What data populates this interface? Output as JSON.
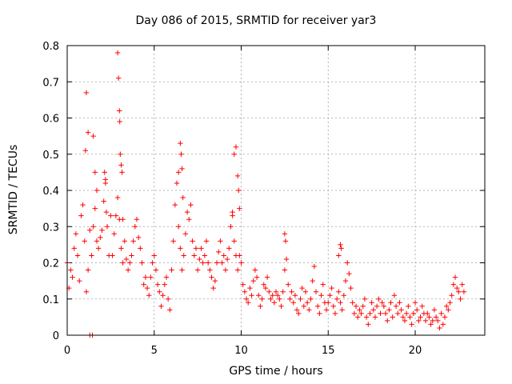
{
  "chart_data": {
    "type": "scatter",
    "title": "Day 086 of 2015, SRMTID for receiver yar3",
    "xlabel": "GPS time / hours",
    "ylabel": "SRMTID / TECUs",
    "xlim": [
      0,
      24
    ],
    "ylim": [
      0,
      0.8
    ],
    "xticks": [
      0,
      5,
      10,
      15,
      20
    ],
    "yticks": [
      0,
      0.1,
      0.2,
      0.3,
      0.4,
      0.5,
      0.6,
      0.7,
      0.8
    ],
    "xtick_labels": [
      "0",
      "5",
      "10",
      "15",
      "20"
    ],
    "ytick_labels": [
      "0",
      "0.1",
      "0.2",
      "0.3",
      "0.4",
      "0.5",
      "0.6",
      "0.7",
      "0.8"
    ],
    "grid": true,
    "marker": "+",
    "color": "#ff0000",
    "x": [
      0.0,
      0.1,
      0.2,
      0.3,
      0.4,
      0.5,
      0.6,
      0.7,
      0.8,
      0.9,
      1.0,
      1.1,
      1.2,
      1.3,
      1.4,
      1.5,
      1.6,
      1.7,
      1.8,
      1.9,
      2.0,
      2.1,
      2.2,
      2.3,
      2.4,
      2.5,
      2.6,
      2.7,
      2.8,
      2.9,
      3.0,
      3.1,
      3.2,
      3.3,
      3.4,
      3.5,
      3.6,
      3.7,
      3.8,
      3.9,
      4.0,
      4.1,
      4.2,
      4.3,
      4.4,
      4.5,
      4.6,
      4.7,
      4.8,
      4.9,
      5.0,
      5.1,
      5.2,
      5.3,
      5.4,
      5.5,
      5.6,
      5.7,
      5.8,
      5.9,
      6.0,
      6.1,
      6.2,
      6.3,
      6.4,
      6.5,
      6.6,
      6.7,
      6.8,
      6.9,
      7.0,
      7.1,
      7.2,
      7.3,
      7.4,
      7.5,
      7.6,
      7.7,
      7.8,
      7.9,
      8.0,
      8.1,
      8.2,
      8.3,
      8.4,
      8.5,
      8.6,
      8.7,
      8.8,
      8.9,
      9.0,
      9.1,
      9.2,
      9.3,
      9.4,
      9.5,
      9.6,
      9.7,
      9.8,
      9.9,
      10.0,
      10.1,
      10.2,
      10.3,
      10.4,
      10.5,
      10.6,
      10.7,
      10.8,
      10.9,
      11.0,
      11.1,
      11.2,
      11.3,
      11.4,
      11.5,
      11.6,
      11.7,
      11.8,
      11.9,
      12.0,
      12.1,
      12.2,
      12.3,
      12.4,
      12.5,
      12.6,
      12.7,
      12.8,
      12.9,
      13.0,
      13.1,
      13.2,
      13.3,
      13.4,
      13.5,
      13.6,
      13.7,
      13.8,
      13.9,
      14.0,
      14.1,
      14.2,
      14.3,
      14.4,
      14.5,
      14.6,
      14.7,
      14.8,
      14.9,
      15.0,
      15.1,
      15.2,
      15.3,
      15.4,
      15.5,
      15.6,
      15.7,
      15.8,
      15.9,
      16.0,
      16.1,
      16.2,
      16.3,
      16.4,
      16.5,
      16.6,
      16.7,
      16.8,
      16.9,
      17.0,
      17.1,
      17.2,
      17.3,
      17.4,
      17.5,
      17.6,
      17.7,
      17.8,
      17.9,
      18.0,
      18.1,
      18.2,
      18.3,
      18.4,
      18.5,
      18.6,
      18.7,
      18.8,
      18.9,
      19.0,
      19.1,
      19.2,
      19.3,
      19.4,
      19.5,
      19.6,
      19.7,
      19.8,
      19.9,
      20.0,
      20.1,
      20.2,
      20.3,
      20.4,
      20.5,
      20.6,
      20.7,
      20.8,
      20.9,
      21.0,
      21.1,
      21.2,
      21.3,
      21.4,
      21.5,
      21.6,
      21.7,
      21.8,
      21.9,
      22.0,
      22.1,
      22.2,
      22.3,
      22.4,
      22.5,
      22.6,
      22.7,
      22.8,
      1.05,
      1.1,
      1.2,
      1.3,
      1.45,
      1.5,
      1.6,
      1.7,
      2.15,
      2.2,
      2.25,
      2.9,
      2.95,
      3.0,
      3.02,
      3.05,
      3.1,
      3.15,
      3.2,
      6.4,
      6.5,
      6.55,
      6.6,
      6.65,
      9.5,
      9.6,
      9.7,
      9.8,
      9.85,
      9.9,
      12.5,
      12.55,
      15.6,
      15.7,
      15.75
    ],
    "y": [
      0.2,
      0.13,
      0.18,
      0.16,
      0.24,
      0.28,
      0.22,
      0.15,
      0.33,
      0.36,
      0.26,
      0.12,
      0.18,
      0.29,
      0.22,
      0.3,
      0.35,
      0.26,
      0.24,
      0.27,
      0.29,
      0.37,
      0.43,
      0.3,
      0.22,
      0.33,
      0.22,
      0.28,
      0.33,
      0.38,
      0.32,
      0.24,
      0.2,
      0.26,
      0.21,
      0.18,
      0.2,
      0.22,
      0.26,
      0.3,
      0.32,
      0.27,
      0.24,
      0.2,
      0.14,
      0.16,
      0.13,
      0.11,
      0.16,
      0.2,
      0.22,
      0.18,
      0.14,
      0.12,
      0.08,
      0.11,
      0.14,
      0.16,
      0.1,
      0.07,
      0.18,
      0.26,
      0.36,
      0.42,
      0.3,
      0.24,
      0.18,
      0.22,
      0.28,
      0.34,
      0.32,
      0.36,
      0.26,
      0.22,
      0.24,
      0.18,
      0.21,
      0.24,
      0.2,
      0.22,
      0.26,
      0.2,
      0.18,
      0.16,
      0.13,
      0.15,
      0.2,
      0.23,
      0.26,
      0.2,
      0.22,
      0.18,
      0.21,
      0.24,
      0.3,
      0.34,
      0.26,
      0.22,
      0.18,
      0.22,
      0.2,
      0.14,
      0.12,
      0.1,
      0.09,
      0.13,
      0.11,
      0.15,
      0.18,
      0.16,
      0.11,
      0.08,
      0.1,
      0.14,
      0.13,
      0.16,
      0.12,
      0.1,
      0.11,
      0.09,
      0.12,
      0.11,
      0.1,
      0.08,
      0.12,
      0.18,
      0.21,
      0.14,
      0.1,
      0.12,
      0.09,
      0.11,
      0.07,
      0.06,
      0.1,
      0.13,
      0.08,
      0.12,
      0.09,
      0.07,
      0.1,
      0.15,
      0.19,
      0.12,
      0.08,
      0.06,
      0.11,
      0.14,
      0.09,
      0.07,
      0.09,
      0.11,
      0.13,
      0.08,
      0.06,
      0.1,
      0.12,
      0.09,
      0.07,
      0.11,
      0.15,
      0.2,
      0.17,
      0.13,
      0.09,
      0.06,
      0.08,
      0.05,
      0.07,
      0.06,
      0.08,
      0.1,
      0.05,
      0.03,
      0.06,
      0.09,
      0.07,
      0.05,
      0.08,
      0.1,
      0.06,
      0.09,
      0.08,
      0.06,
      0.04,
      0.07,
      0.09,
      0.05,
      0.11,
      0.08,
      0.06,
      0.09,
      0.07,
      0.05,
      0.04,
      0.06,
      0.08,
      0.05,
      0.03,
      0.06,
      0.09,
      0.07,
      0.04,
      0.05,
      0.08,
      0.06,
      0.04,
      0.06,
      0.05,
      0.03,
      0.04,
      0.07,
      0.05,
      0.04,
      0.02,
      0.06,
      0.03,
      0.05,
      0.08,
      0.07,
      0.09,
      0.11,
      0.14,
      0.16,
      0.13,
      0.12,
      0.1,
      0.14,
      0.12,
      0.51,
      0.67,
      0.56,
      0.0,
      0.0,
      0.55,
      0.45,
      0.4,
      0.45,
      0.42,
      0.34,
      0.78,
      0.71,
      0.62,
      0.59,
      0.5,
      0.47,
      0.45,
      0.32,
      0.45,
      0.53,
      0.5,
      0.46,
      0.38,
      0.33,
      0.5,
      0.52,
      0.44,
      0.4,
      0.35,
      0.28,
      0.26,
      0.22,
      0.25,
      0.24
    ]
  }
}
